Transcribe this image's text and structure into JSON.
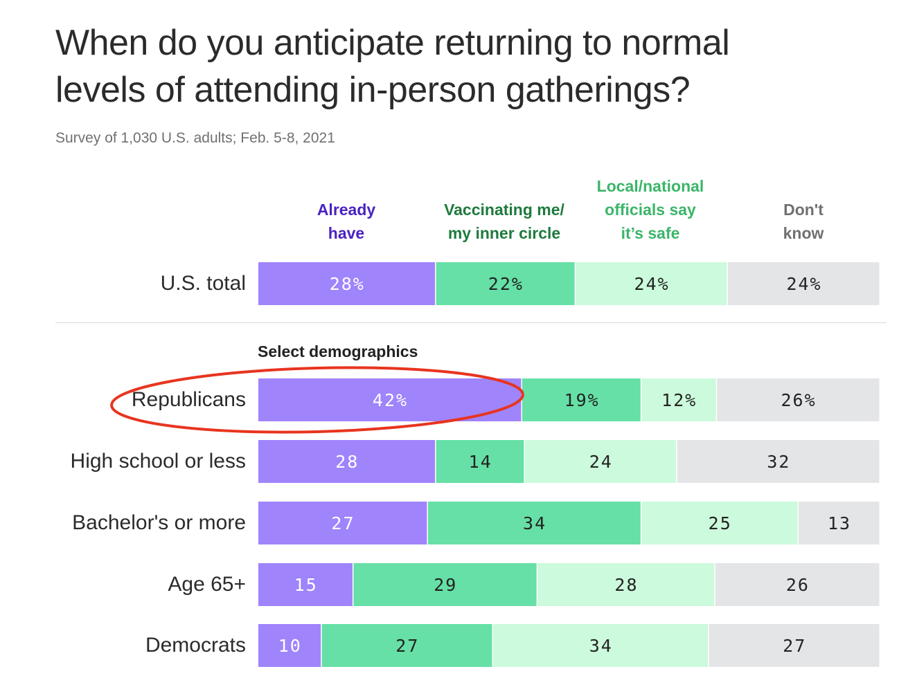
{
  "chart_data": {
    "type": "bar",
    "orientation": "horizontal",
    "stacked": true,
    "title_lines": [
      "When do you anticipate returning to normal",
      "levels of attending in-person gatherings?"
    ],
    "subtitle": "Survey of 1,030 U.S. adults; Feb. 5-8, 2021",
    "section_label": "Select demographics",
    "series": [
      {
        "name": "Already have",
        "legend_lines": [
          "Already",
          "have"
        ],
        "color": "#a084fc",
        "label_color": "#ffffff",
        "header_color": "#4a22c2"
      },
      {
        "name": "Vaccinating me/ my inner circle",
        "legend_lines": [
          "Vaccinating me/",
          "my inner circle"
        ],
        "color": "#66e0a6",
        "label_color": "#222222",
        "header_color": "#1e7a3d"
      },
      {
        "name": "Local/national officials say it’s safe",
        "legend_lines": [
          "Local/national",
          "officials say",
          "it’s safe"
        ],
        "color": "#ccfadc",
        "label_color": "#222222",
        "header_color": "#3bb569"
      },
      {
        "name": "Don't know",
        "legend_lines": [
          "Don't",
          "know"
        ],
        "color": "#e4e5e7",
        "label_color": "#222222",
        "header_color": "#707070"
      }
    ],
    "rows": [
      {
        "name": "U.S. total",
        "values": [
          28,
          22,
          24,
          24
        ],
        "labels": [
          "28%",
          "22%",
          "24%",
          "24%"
        ]
      },
      {
        "name": "Republicans",
        "values": [
          42,
          19,
          12,
          26
        ],
        "labels": [
          "42%",
          "19%",
          "12%",
          "26%"
        ],
        "highlighted": true
      },
      {
        "name": "High school or less",
        "values": [
          28,
          14,
          24,
          32
        ],
        "labels": [
          "28",
          "14",
          "24",
          "32"
        ]
      },
      {
        "name": "Bachelor's or more",
        "values": [
          27,
          34,
          25,
          13
        ],
        "labels": [
          "27",
          "34",
          "25",
          "13"
        ]
      },
      {
        "name": "Age 65+",
        "values": [
          15,
          29,
          28,
          26
        ],
        "labels": [
          "15",
          "29",
          "28",
          "26"
        ]
      },
      {
        "name": "Democrats",
        "values": [
          10,
          27,
          34,
          27
        ],
        "labels": [
          "10",
          "27",
          "34",
          "27"
        ]
      }
    ],
    "highlight_color": "#e8341f",
    "xlabel": "",
    "ylabel": ""
  }
}
